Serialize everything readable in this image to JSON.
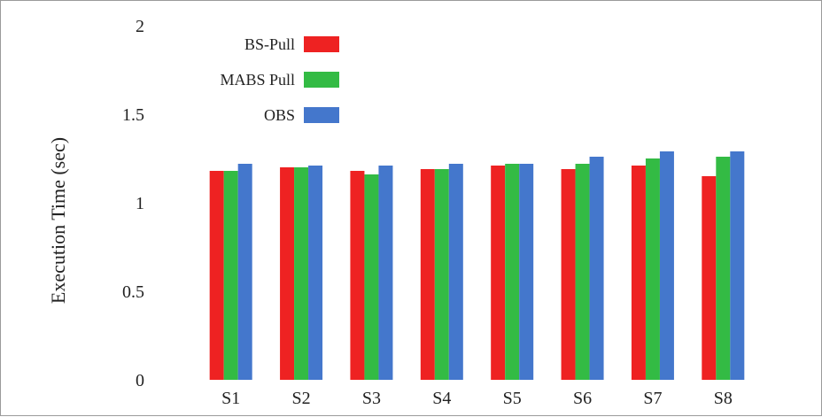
{
  "chart_data": {
    "type": "bar",
    "categories": [
      "S1",
      "S2",
      "S3",
      "S4",
      "S5",
      "S6",
      "S7",
      "S8"
    ],
    "series": [
      {
        "name": "BS-Pull",
        "color": "#ee2222",
        "values": [
          1.18,
          1.2,
          1.18,
          1.19,
          1.21,
          1.19,
          1.21,
          1.15
        ]
      },
      {
        "name": "MABS Pull",
        "color": "#33bb44",
        "values": [
          1.18,
          1.2,
          1.16,
          1.19,
          1.22,
          1.22,
          1.25,
          1.26
        ]
      },
      {
        "name": "OBS",
        "color": "#4477cc",
        "values": [
          1.22,
          1.21,
          1.21,
          1.22,
          1.22,
          1.26,
          1.29,
          1.29
        ]
      }
    ],
    "ylabel": "Execution Time (sec)",
    "ylim": [
      0,
      2
    ],
    "yticks": [
      "0",
      "0.5",
      "1",
      "1.5",
      "2"
    ],
    "legend_placement": "top-left",
    "grid": false
  }
}
